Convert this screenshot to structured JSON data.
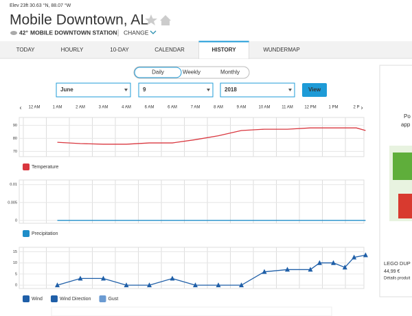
{
  "header": {
    "location_meta": "Elev 23ft 30.63 °N, 88.07 °W",
    "title": "Mobile Downtown, AL",
    "temperature": "42°",
    "station": "MOBILE DOWNTOWN STATION",
    "change": "CHANGE"
  },
  "tabs": [
    "TODAY",
    "HOURLY",
    "10-DAY",
    "CALENDAR",
    "HISTORY",
    "WUNDERMAP"
  ],
  "active_tab": 4,
  "period_toggle": [
    "Daily",
    "Weekly",
    "Monthly"
  ],
  "active_period": 0,
  "selects": [
    "June",
    "9",
    "2018"
  ],
  "view_button": "View",
  "time_labels": [
    "12 AM",
    "1 AM",
    "2 AM",
    "3 AM",
    "4 AM",
    "6 AM",
    "6 AM",
    "7 AM",
    "8 AM",
    "9 AM",
    "10 AM",
    "11 AM",
    "12 PM",
    "1 PM",
    "2 P"
  ],
  "chart_data": [
    {
      "type": "line",
      "x": [
        1,
        2,
        3,
        4,
        5,
        6,
        7,
        8,
        9,
        10,
        11,
        12,
        13,
        14,
        14.4
      ],
      "series": [
        {
          "name": "Temperature",
          "color": "#d9363e",
          "values": [
            77,
            76,
            75.5,
            75.5,
            76.5,
            76.5,
            79,
            82,
            86,
            87,
            87,
            88,
            88,
            88,
            86
          ]
        }
      ],
      "ylim": [
        66,
        96
      ],
      "yticks": [
        70,
        80,
        90
      ],
      "grid": true
    },
    {
      "type": "line",
      "x": [
        1,
        2,
        3,
        4,
        5,
        6,
        7,
        8,
        9,
        10,
        11,
        12,
        13,
        14,
        14.4
      ],
      "series": [
        {
          "name": "Precipitation",
          "color": "#1f8dc8",
          "values": [
            0,
            0,
            0,
            0,
            0,
            0,
            0,
            0,
            0,
            0,
            0,
            0,
            0,
            0,
            0
          ]
        }
      ],
      "ylim": [
        -0.0008,
        0.0113
      ],
      "yticks": [
        0,
        0.005,
        0.01
      ],
      "grid": true
    },
    {
      "type": "line",
      "x": [
        1,
        2,
        3,
        4,
        5,
        6,
        7,
        8,
        9,
        10,
        11,
        12,
        12.4,
        13,
        13.5,
        13.9,
        14.4
      ],
      "series": [
        {
          "name": "Wind",
          "color": "#1f5fa8",
          "values": [
            0,
            3,
            3,
            0,
            0,
            3,
            0,
            0,
            0,
            6,
            7,
            7,
            10,
            10,
            8,
            12.5,
            13.5
          ]
        }
      ],
      "markers": {
        "name": "Wind Direction",
        "color": "#1f5fa8"
      },
      "extra_legend": [
        {
          "name": "Gust",
          "color": "#6b9bd2"
        }
      ],
      "ylim": [
        -1.5,
        17
      ],
      "yticks": [
        0,
        5,
        10,
        15
      ],
      "grid": true
    }
  ],
  "ad": {
    "line1": "Po",
    "line2": "app",
    "product": "LEGO DUP",
    "price": "44,99 €",
    "details": "Détails produit"
  }
}
